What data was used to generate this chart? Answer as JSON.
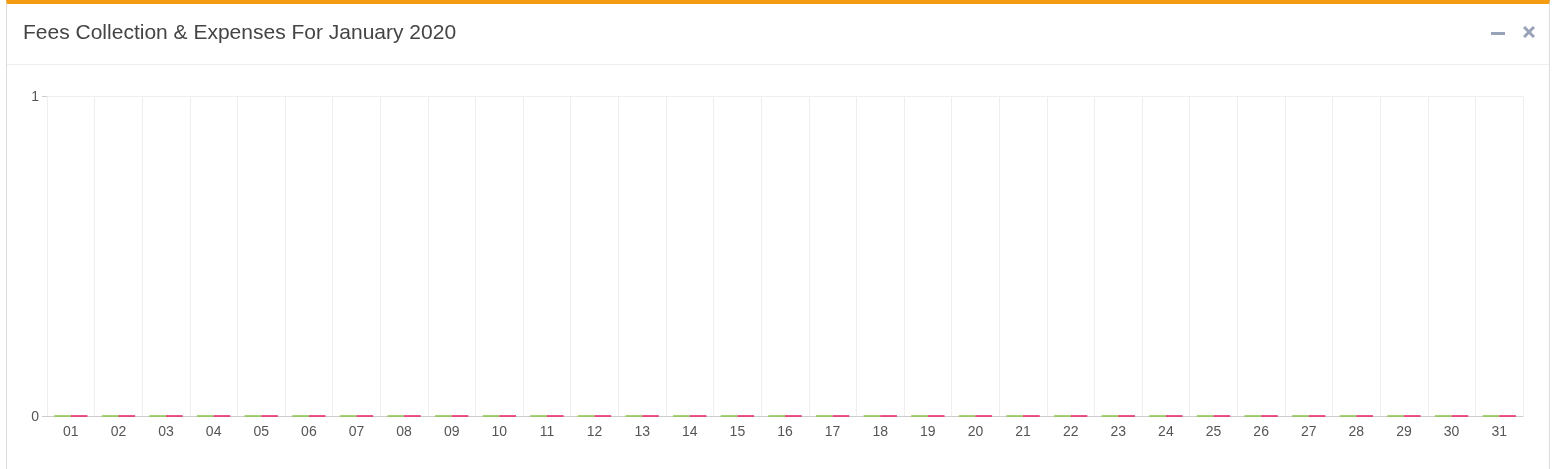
{
  "chart_data": {
    "type": "bar",
    "title": "Fees Collection & Expenses For January 2020",
    "categories": [
      "01",
      "02",
      "03",
      "04",
      "05",
      "06",
      "07",
      "08",
      "09",
      "10",
      "11",
      "12",
      "13",
      "14",
      "15",
      "16",
      "17",
      "18",
      "19",
      "20",
      "21",
      "22",
      "23",
      "24",
      "25",
      "26",
      "27",
      "28",
      "29",
      "30",
      "31"
    ],
    "series": [
      {
        "color": "#8bc34a",
        "values": [
          0,
          0,
          0,
          0,
          0,
          0,
          0,
          0,
          0,
          0,
          0,
          0,
          0,
          0,
          0,
          0,
          0,
          0,
          0,
          0,
          0,
          0,
          0,
          0,
          0,
          0,
          0,
          0,
          0,
          0,
          0
        ]
      },
      {
        "color": "#e91e63",
        "values": [
          0,
          0,
          0,
          0,
          0,
          0,
          0,
          0,
          0,
          0,
          0,
          0,
          0,
          0,
          0,
          0,
          0,
          0,
          0,
          0,
          0,
          0,
          0,
          0,
          0,
          0,
          0,
          0,
          0,
          0,
          0
        ]
      }
    ],
    "ylim": [
      0,
      1
    ],
    "yticks": [
      0,
      1
    ],
    "grid": true
  }
}
